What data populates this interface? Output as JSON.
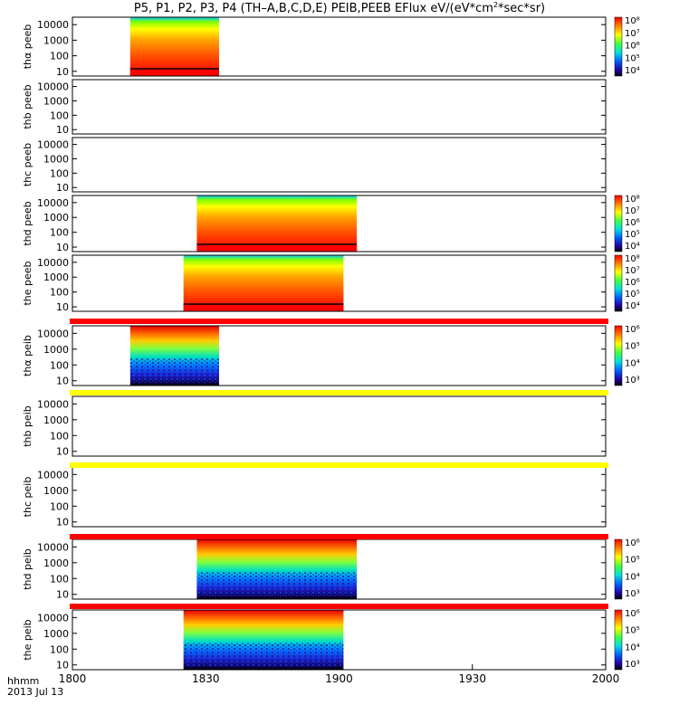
{
  "title_prefix": "P5, P1, P2, P3, P4 (TH–A,B,C,D,E) PEIB,PEEB EFlux eV/(eV*cm",
  "title_sup": "2",
  "title_suffix": "*sec*sr)",
  "footer": {
    "line1": "hhmm",
    "line2": "2013 Jul 13"
  },
  "chart_data": {
    "type": "heatmap",
    "x_axis": {
      "ticks": [
        "1800",
        "1830",
        "1900",
        "1930",
        "2000"
      ],
      "range_minutes": [
        0,
        120
      ]
    },
    "y_axis": {
      "scale": "log",
      "ticks": [
        "10000",
        "1000",
        "100",
        "10"
      ]
    },
    "panels": [
      {
        "probe": "tha",
        "product": "peeb",
        "ylabel": "thα peeb",
        "data_start": 13,
        "data_end": 33,
        "colorbar": [
          "10⁸",
          "10⁷",
          "10⁶",
          "10⁵",
          "10⁴"
        ],
        "cb_top": 8,
        "cb_bottom": 3.5,
        "kind": "electron"
      },
      {
        "probe": "thb",
        "product": "peeb",
        "ylabel": "thb peeb",
        "data_start": null,
        "data_end": null,
        "colorbar": [],
        "kind": "empty"
      },
      {
        "probe": "thc",
        "product": "peeb",
        "ylabel": "thc peeb",
        "data_start": null,
        "data_end": null,
        "colorbar": [],
        "kind": "empty"
      },
      {
        "probe": "thd",
        "product": "peeb",
        "ylabel": "thd peeb",
        "data_start": 28,
        "data_end": 64,
        "colorbar": [
          "10⁸",
          "10⁷",
          "10⁶",
          "10⁵",
          "10⁴"
        ],
        "cb_top": 8,
        "cb_bottom": 3.5,
        "kind": "electron"
      },
      {
        "probe": "the",
        "product": "peeb",
        "ylabel": "the peeb",
        "data_start": 25,
        "data_end": 61,
        "colorbar": [
          "10⁸",
          "10⁷",
          "10⁶",
          "10⁵",
          "10⁴"
        ],
        "cb_top": 8,
        "cb_bottom": 3.5,
        "kind": "electron"
      },
      {
        "probe": "tha",
        "product": "peib",
        "ylabel": "thα peib",
        "data_start": 13,
        "data_end": 33,
        "colorbar": [
          "10⁶",
          "10⁵",
          "10⁴",
          "10³"
        ],
        "cb_top": 6,
        "cb_bottom": 2.8,
        "kind": "ion"
      },
      {
        "probe": "thb",
        "product": "peib",
        "ylabel": "thb peib",
        "data_start": null,
        "data_end": null,
        "colorbar": [],
        "kind": "empty"
      },
      {
        "probe": "thc",
        "product": "peib",
        "ylabel": "thc peib",
        "data_start": null,
        "data_end": null,
        "colorbar": [],
        "kind": "empty"
      },
      {
        "probe": "thd",
        "product": "peib",
        "ylabel": "thd peib",
        "data_start": 28,
        "data_end": 64,
        "colorbar": [
          "10⁶",
          "10⁵",
          "10⁴",
          "10³"
        ],
        "cb_top": 6,
        "cb_bottom": 2.8,
        "kind": "ion"
      },
      {
        "probe": "the",
        "product": "peib",
        "ylabel": "the peib",
        "data_start": 25,
        "data_end": 61,
        "colorbar": [
          "10⁶",
          "10⁵",
          "10⁴",
          "10³"
        ],
        "cb_top": 6,
        "cb_bottom": 2.8,
        "kind": "ion"
      }
    ],
    "status_bars": [
      {
        "after_panel": 5,
        "color": "#ff0000"
      },
      {
        "after_panel": 6,
        "color": "#ffff00"
      },
      {
        "after_panel": 7,
        "color": "#ffff00"
      },
      {
        "after_panel": 8,
        "color": "#ff0000"
      },
      {
        "after_panel": 9,
        "color": "#ff0000"
      }
    ]
  }
}
